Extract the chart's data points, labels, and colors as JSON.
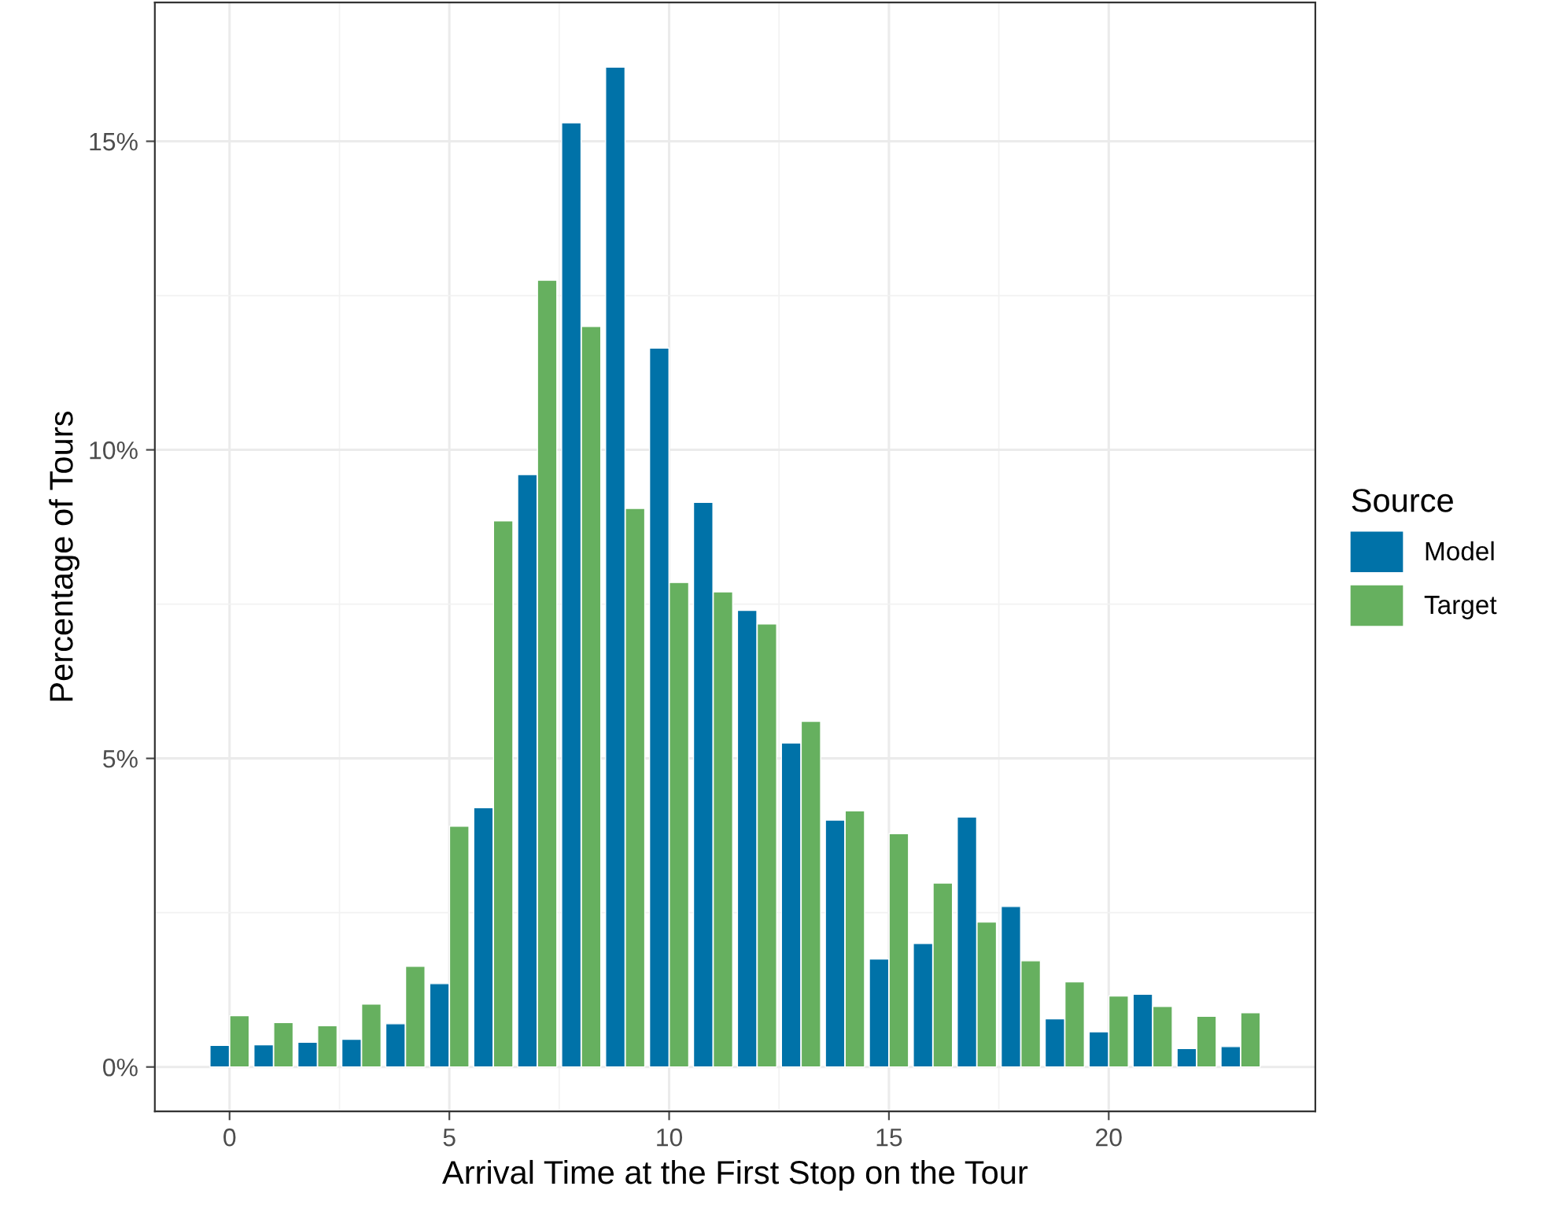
{
  "chart_data": {
    "type": "bar",
    "xlabel": "Arrival Time at the First Stop on the Tour",
    "ylabel": "Percentage of Tours",
    "legend_title": "Source",
    "x": [
      0,
      1,
      2,
      3,
      4,
      5,
      6,
      7,
      8,
      9,
      10,
      11,
      12,
      13,
      14,
      15,
      16,
      17,
      18,
      19,
      20,
      21,
      22,
      23
    ],
    "series": [
      {
        "name": "Model",
        "color": "#0072a8",
        "values": [
          0.35,
          0.36,
          0.4,
          0.45,
          0.7,
          1.35,
          4.2,
          9.6,
          15.3,
          16.2,
          11.65,
          9.15,
          7.4,
          5.25,
          4.0,
          1.75,
          2.0,
          4.05,
          2.6,
          0.78,
          0.57,
          1.18,
          0.3,
          0.33
        ]
      },
      {
        "name": "Target",
        "color": "#66b05f",
        "values": [
          0.83,
          0.72,
          0.67,
          1.02,
          1.63,
          3.9,
          8.85,
          12.75,
          12.0,
          9.05,
          7.85,
          7.7,
          7.18,
          5.6,
          4.15,
          3.78,
          2.98,
          2.35,
          1.72,
          1.38,
          1.15,
          0.98,
          0.82,
          0.88
        ]
      }
    ],
    "xlim": [
      -1.7,
      24.7
    ],
    "xticks": [
      0,
      5,
      10,
      15,
      20
    ],
    "ylim": [
      -0.72,
      17.25
    ],
    "yticks": [
      {
        "value": 0,
        "label": "0%"
      },
      {
        "value": 5,
        "label": "5%"
      },
      {
        "value": 10,
        "label": "10%"
      },
      {
        "value": 15,
        "label": "15%"
      }
    ],
    "grid": true,
    "legend": "right"
  }
}
